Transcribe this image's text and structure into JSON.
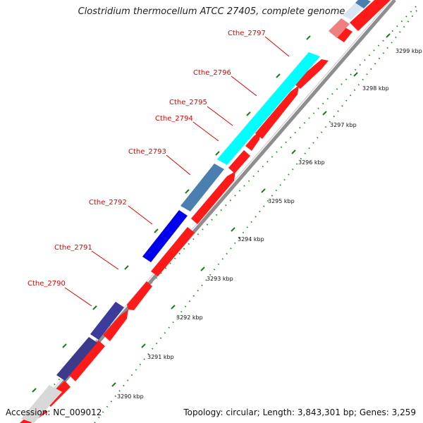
{
  "title": "Clostridium thermocellum ATCC 27405, complete genome",
  "accession": "Accession: NC_009012",
  "topology": "Topology: circular; Length: 3,843,301 bp; Genes: 3,259",
  "colors": {
    "forward_cds": "#ff0000",
    "label_red": "#e00000",
    "tick_green": "#006600",
    "backbone": "#9a9a9a"
  },
  "gene_labels": [
    "Cthe_2790",
    "Cthe_2791",
    "Cthe_2792",
    "Cthe_2793",
    "Cthe_2794",
    "Cthe_2795",
    "Cthe_2796",
    "Cthe_2797"
  ],
  "kbp_labels": [
    "3290 kbp",
    "3291 kbp",
    "3292 kbp",
    "3293 kbp",
    "3294 kbp",
    "3295 kbp",
    "3296 kbp",
    "3297 kbp",
    "3298 kbp",
    "3299 kbp"
  ],
  "features": [
    {
      "name": "Cthe_2790",
      "color": "#3d3a8c"
    },
    {
      "name": "Cthe_2791",
      "color": "#2222cc"
    },
    {
      "name": "Cthe_2792",
      "color": "#0000ee"
    },
    {
      "name": "Cthe_2793",
      "color": "#4a7fb0"
    },
    {
      "name": "Cthe_2796",
      "color": "#00ffff"
    }
  ]
}
